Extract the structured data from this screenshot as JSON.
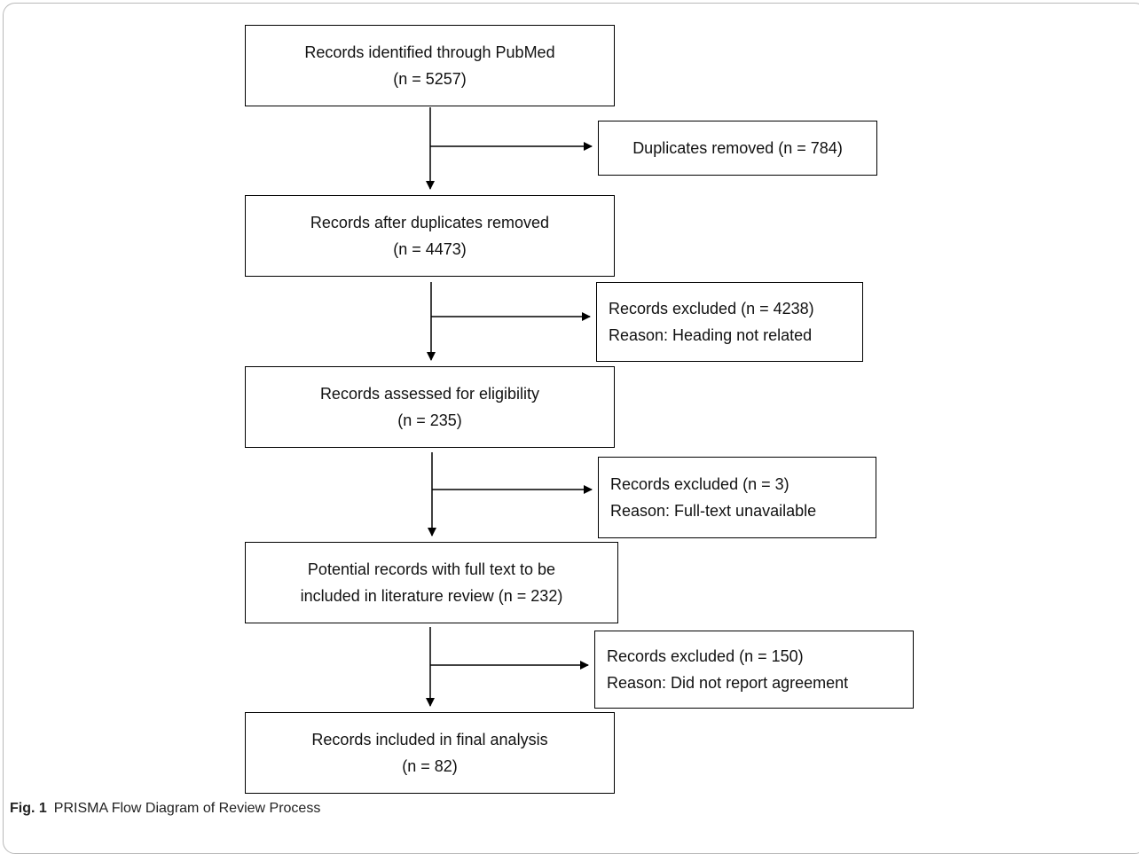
{
  "flow_steps": [
    {
      "lines": [
        "Records identified through PubMed",
        "(n = 5257)"
      ]
    },
    {
      "lines": [
        "Records after duplicates removed",
        "(n = 4473)"
      ]
    },
    {
      "lines": [
        "Records assessed for eligibility",
        "(n = 235)"
      ]
    },
    {
      "lines": [
        "Potential records with full text to be",
        "included in literature review (n = 232)"
      ]
    },
    {
      "lines": [
        "Records included in final analysis",
        "(n = 82)"
      ]
    }
  ],
  "exclusions": [
    {
      "lines": [
        "Duplicates removed (n = 784)"
      ]
    },
    {
      "lines": [
        "Records excluded (n = 4238)",
        "Reason: Heading not related"
      ]
    },
    {
      "lines": [
        "Records excluded (n = 3)",
        "Reason:  Full-text unavailable"
      ]
    },
    {
      "lines": [
        "Records excluded (n = 150)",
        "Reason: Did not report agreement"
      ]
    }
  ],
  "caption": {
    "label": "Fig. 1",
    "text": "PRISMA Flow Diagram of Review Process"
  }
}
